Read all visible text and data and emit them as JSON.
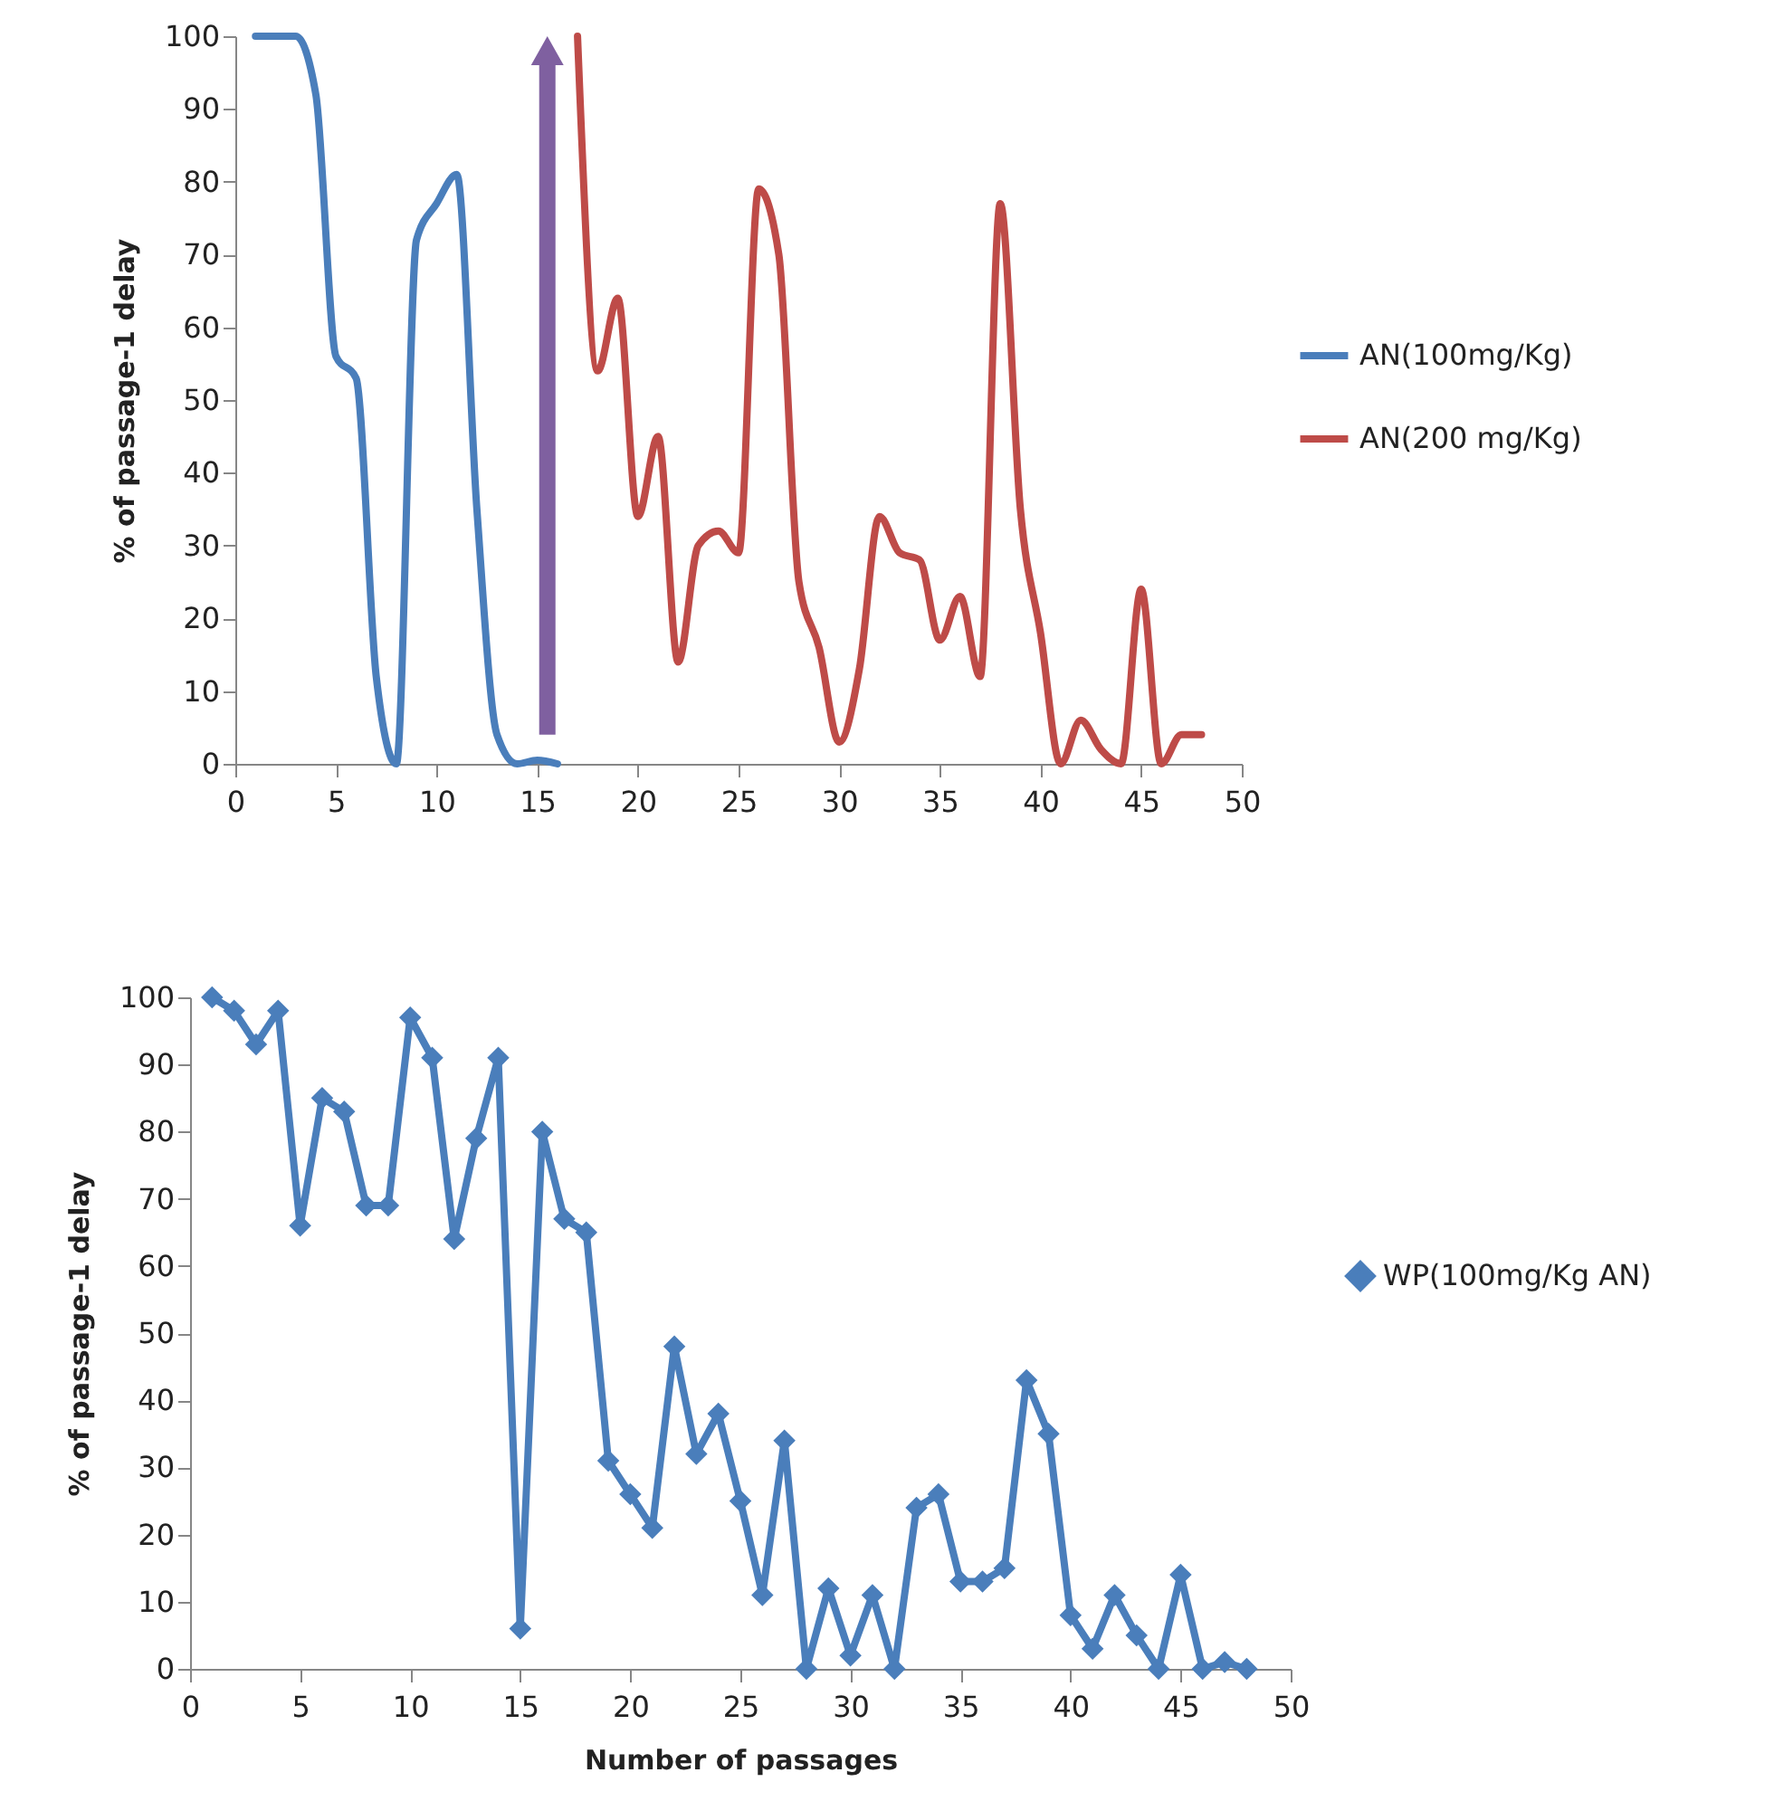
{
  "chart_data": [
    {
      "type": "line",
      "ylabel": "% of passage-1 delay",
      "xlim": [
        0,
        50
      ],
      "xticks": [
        0,
        5,
        10,
        15,
        20,
        25,
        30,
        35,
        40,
        45,
        50
      ],
      "ylim": [
        0,
        100
      ],
      "yticks": [
        0,
        10,
        20,
        30,
        40,
        50,
        60,
        70,
        80,
        90,
        100
      ],
      "legend": "right",
      "series": [
        {
          "name": "AN(100mg/Kg)",
          "color": "#4a7ebb",
          "x": [
            1,
            2,
            3,
            4,
            5,
            6,
            7,
            8,
            9,
            10,
            11,
            12,
            13,
            14,
            15,
            16
          ],
          "values": [
            100,
            100,
            100,
            92,
            56,
            53,
            12,
            0,
            72,
            77,
            81,
            35,
            4,
            0,
            0.5,
            0
          ]
        },
        {
          "name": "AN(200 mg/Kg)",
          "color": "#be4b48",
          "x": [
            17,
            18,
            19,
            20,
            21,
            22,
            23,
            24,
            25,
            26,
            27,
            28,
            29,
            30,
            31,
            32,
            33,
            34,
            35,
            36,
            37,
            38,
            39,
            40,
            41,
            42,
            43,
            44,
            45,
            46,
            47,
            48
          ],
          "values": [
            100,
            54,
            64,
            34,
            45,
            14,
            30,
            32,
            29,
            79,
            70,
            25,
            16,
            3,
            13,
            34,
            29,
            28,
            17,
            23,
            12,
            77,
            35,
            18,
            0,
            6,
            2,
            0,
            24,
            0,
            4,
            4
          ]
        }
      ]
    },
    {
      "type": "line",
      "xlabel": "Number of passages",
      "ylabel": "% of passage-1 delay",
      "xlim": [
        0,
        50
      ],
      "xticks": [
        0,
        5,
        10,
        15,
        20,
        25,
        30,
        35,
        40,
        45,
        50
      ],
      "ylim": [
        0,
        100
      ],
      "yticks": [
        0,
        10,
        20,
        30,
        40,
        50,
        60,
        70,
        80,
        90,
        100
      ],
      "legend": "right",
      "marker": "diamond",
      "series": [
        {
          "name": "WP(100mg/Kg AN)",
          "color": "#4a7ebb",
          "x": [
            1,
            2,
            3,
            4,
            5,
            6,
            7,
            8,
            9,
            10,
            11,
            12,
            13,
            14,
            15,
            16,
            17,
            18,
            19,
            20,
            21,
            22,
            23,
            24,
            25,
            26,
            27,
            28,
            29,
            30,
            31,
            32,
            33,
            34,
            35,
            36,
            37,
            38,
            39,
            40,
            41,
            42,
            43,
            44,
            45,
            46,
            47,
            48
          ],
          "values": [
            100,
            98,
            93,
            98,
            66,
            85,
            83,
            69,
            69,
            97,
            91,
            64,
            79,
            91,
            6,
            80,
            67,
            65,
            31,
            26,
            21,
            48,
            32,
            38,
            25,
            11,
            34,
            0,
            12,
            2,
            11,
            0,
            24,
            26,
            13,
            13,
            15,
            43,
            35,
            8,
            3,
            11,
            5,
            0,
            14,
            0,
            1,
            0
          ]
        }
      ]
    }
  ]
}
